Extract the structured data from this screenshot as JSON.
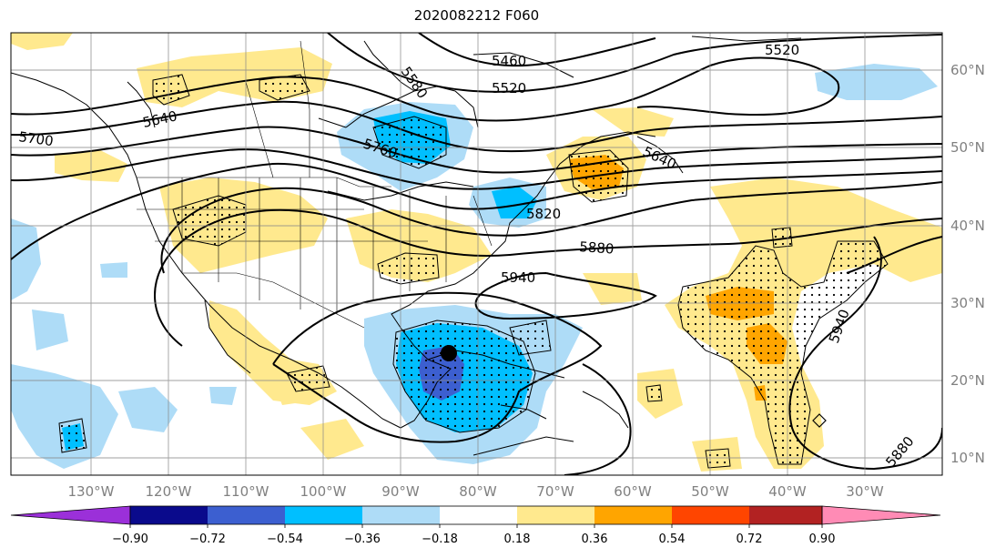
{
  "title": "2020082212 F060",
  "lon_labels": [
    "130°W",
    "120°W",
    "110°W",
    "100°W",
    "90°W",
    "80°W",
    "70°W",
    "60°W",
    "50°W",
    "40°W",
    "30°W"
  ],
  "lat_labels": [
    "60°N",
    "50°N",
    "40°N",
    "30°N",
    "20°N",
    "10°N"
  ],
  "contour_labels": [
    "5460",
    "5520",
    "5520",
    "5580",
    "5640",
    "5640",
    "5700",
    "5760",
    "5820",
    "5880",
    "5880",
    "5940",
    "5940"
  ],
  "colorbar": {
    "ticks": [
      "−0.90",
      "−0.72",
      "−0.54",
      "−0.36",
      "−0.18",
      "0.18",
      "0.36",
      "0.54",
      "0.72",
      "0.90"
    ],
    "colors": [
      "#9b30d9",
      "#0a0a8c",
      "#3c5fd0",
      "#00bfff",
      "#aedcf7",
      "#ffffff",
      "#ffe98e",
      "#ffa500",
      "#ff4500",
      "#b22222",
      "#ff8bb5"
    ]
  },
  "colors": {
    "light_blue": "#aedcf7",
    "mid_blue": "#00bfff",
    "dark_blue": "#3c5fd0",
    "yellow": "#ffe98e",
    "orange": "#ffa500"
  }
}
